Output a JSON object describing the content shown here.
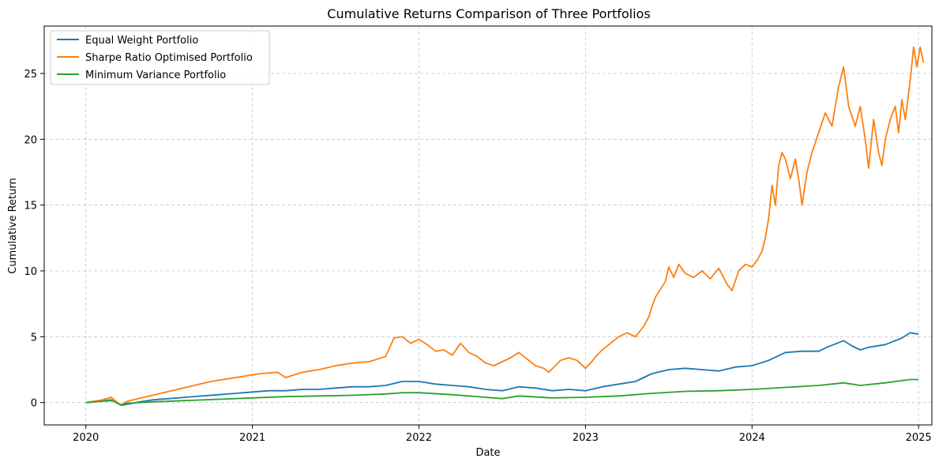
{
  "chart_data": {
    "type": "line",
    "title": "Cumulative Returns Comparison of Three Portfolios",
    "xlabel": "Date",
    "ylabel": "Cumulative Return",
    "x_ticks": [
      "2020",
      "2021",
      "2022",
      "2023",
      "2024",
      "2025"
    ],
    "y_ticks": [
      "0",
      "5",
      "10",
      "15",
      "20",
      "25"
    ],
    "xlim": [
      2019.75,
      2025.08
    ],
    "ylim": [
      -1.7,
      28.6
    ],
    "grid": true,
    "legend_position": "top-left",
    "series": [
      {
        "name": "Equal Weight Portfolio",
        "color": "#1f77b4",
        "points": [
          [
            2020.0,
            0.0
          ],
          [
            2020.08,
            0.1
          ],
          [
            2020.15,
            0.2
          ],
          [
            2020.2,
            -0.1
          ],
          [
            2020.22,
            -0.2
          ],
          [
            2020.3,
            0.0
          ],
          [
            2020.4,
            0.2
          ],
          [
            2020.5,
            0.3
          ],
          [
            2020.6,
            0.4
          ],
          [
            2020.7,
            0.5
          ],
          [
            2020.8,
            0.6
          ],
          [
            2020.9,
            0.7
          ],
          [
            2021.0,
            0.8
          ],
          [
            2021.1,
            0.9
          ],
          [
            2021.2,
            0.9
          ],
          [
            2021.3,
            1.0
          ],
          [
            2021.4,
            1.0
          ],
          [
            2021.5,
            1.1
          ],
          [
            2021.6,
            1.2
          ],
          [
            2021.7,
            1.2
          ],
          [
            2021.8,
            1.3
          ],
          [
            2021.9,
            1.6
          ],
          [
            2022.0,
            1.6
          ],
          [
            2022.1,
            1.4
          ],
          [
            2022.2,
            1.3
          ],
          [
            2022.3,
            1.2
          ],
          [
            2022.4,
            1.0
          ],
          [
            2022.5,
            0.9
          ],
          [
            2022.6,
            1.2
          ],
          [
            2022.7,
            1.1
          ],
          [
            2022.8,
            0.9
          ],
          [
            2022.9,
            1.0
          ],
          [
            2023.0,
            0.9
          ],
          [
            2023.1,
            1.2
          ],
          [
            2023.2,
            1.4
          ],
          [
            2023.3,
            1.6
          ],
          [
            2023.4,
            2.2
          ],
          [
            2023.5,
            2.5
          ],
          [
            2023.6,
            2.6
          ],
          [
            2023.7,
            2.5
          ],
          [
            2023.8,
            2.4
          ],
          [
            2023.9,
            2.7
          ],
          [
            2024.0,
            2.8
          ],
          [
            2024.1,
            3.2
          ],
          [
            2024.2,
            3.8
          ],
          [
            2024.3,
            3.9
          ],
          [
            2024.4,
            3.9
          ],
          [
            2024.45,
            4.2
          ],
          [
            2024.55,
            4.7
          ],
          [
            2024.6,
            4.3
          ],
          [
            2024.65,
            4.0
          ],
          [
            2024.7,
            4.2
          ],
          [
            2024.8,
            4.4
          ],
          [
            2024.9,
            4.9
          ],
          [
            2024.95,
            5.3
          ],
          [
            2025.0,
            5.2
          ]
        ]
      },
      {
        "name": "Sharpe Ratio Optimised Portfolio",
        "color": "#ff7f0e",
        "points": [
          [
            2020.0,
            0.0
          ],
          [
            2020.05,
            0.1
          ],
          [
            2020.1,
            0.2
          ],
          [
            2020.15,
            0.4
          ],
          [
            2020.18,
            0.1
          ],
          [
            2020.21,
            -0.2
          ],
          [
            2020.25,
            0.1
          ],
          [
            2020.35,
            0.4
          ],
          [
            2020.45,
            0.7
          ],
          [
            2020.55,
            1.0
          ],
          [
            2020.65,
            1.3
          ],
          [
            2020.75,
            1.6
          ],
          [
            2020.85,
            1.8
          ],
          [
            2020.95,
            2.0
          ],
          [
            2021.05,
            2.2
          ],
          [
            2021.15,
            2.3
          ],
          [
            2021.2,
            1.9
          ],
          [
            2021.3,
            2.3
          ],
          [
            2021.4,
            2.5
          ],
          [
            2021.5,
            2.8
          ],
          [
            2021.6,
            3.0
          ],
          [
            2021.7,
            3.1
          ],
          [
            2021.75,
            3.3
          ],
          [
            2021.8,
            3.5
          ],
          [
            2021.85,
            4.9
          ],
          [
            2021.9,
            5.0
          ],
          [
            2021.95,
            4.5
          ],
          [
            2022.0,
            4.8
          ],
          [
            2022.05,
            4.4
          ],
          [
            2022.1,
            3.9
          ],
          [
            2022.15,
            4.0
          ],
          [
            2022.2,
            3.6
          ],
          [
            2022.25,
            4.5
          ],
          [
            2022.3,
            3.8
          ],
          [
            2022.35,
            3.5
          ],
          [
            2022.4,
            3.0
          ],
          [
            2022.45,
            2.8
          ],
          [
            2022.5,
            3.1
          ],
          [
            2022.55,
            3.4
          ],
          [
            2022.6,
            3.8
          ],
          [
            2022.65,
            3.3
          ],
          [
            2022.7,
            2.8
          ],
          [
            2022.75,
            2.6
          ],
          [
            2022.78,
            2.3
          ],
          [
            2022.85,
            3.2
          ],
          [
            2022.9,
            3.4
          ],
          [
            2022.95,
            3.2
          ],
          [
            2023.0,
            2.6
          ],
          [
            2023.03,
            3.0
          ],
          [
            2023.07,
            3.6
          ],
          [
            2023.1,
            4.0
          ],
          [
            2023.15,
            4.5
          ],
          [
            2023.2,
            5.0
          ],
          [
            2023.25,
            5.3
          ],
          [
            2023.3,
            5.0
          ],
          [
            2023.35,
            5.8
          ],
          [
            2023.38,
            6.5
          ],
          [
            2023.4,
            7.3
          ],
          [
            2023.42,
            8.0
          ],
          [
            2023.45,
            8.6
          ],
          [
            2023.48,
            9.2
          ],
          [
            2023.5,
            10.3
          ],
          [
            2023.53,
            9.5
          ],
          [
            2023.56,
            10.5
          ],
          [
            2023.6,
            9.8
          ],
          [
            2023.65,
            9.5
          ],
          [
            2023.7,
            10.0
          ],
          [
            2023.75,
            9.4
          ],
          [
            2023.8,
            10.2
          ],
          [
            2023.85,
            9.0
          ],
          [
            2023.88,
            8.5
          ],
          [
            2023.92,
            10.0
          ],
          [
            2023.96,
            10.5
          ],
          [
            2024.0,
            10.3
          ],
          [
            2024.03,
            10.8
          ],
          [
            2024.06,
            11.5
          ],
          [
            2024.08,
            12.5
          ],
          [
            2024.1,
            14.0
          ],
          [
            2024.12,
            16.5
          ],
          [
            2024.14,
            15.0
          ],
          [
            2024.16,
            18.0
          ],
          [
            2024.18,
            19.0
          ],
          [
            2024.2,
            18.5
          ],
          [
            2024.23,
            17.0
          ],
          [
            2024.26,
            18.5
          ],
          [
            2024.28,
            17.0
          ],
          [
            2024.3,
            15.0
          ],
          [
            2024.33,
            17.5
          ],
          [
            2024.36,
            19.0
          ],
          [
            2024.4,
            20.5
          ],
          [
            2024.44,
            22.0
          ],
          [
            2024.48,
            21.0
          ],
          [
            2024.52,
            24.0
          ],
          [
            2024.55,
            25.5
          ],
          [
            2024.58,
            22.5
          ],
          [
            2024.62,
            21.0
          ],
          [
            2024.65,
            22.5
          ],
          [
            2024.68,
            20.0
          ],
          [
            2024.7,
            17.8
          ],
          [
            2024.73,
            21.5
          ],
          [
            2024.76,
            19.0
          ],
          [
            2024.78,
            18.0
          ],
          [
            2024.8,
            20.0
          ],
          [
            2024.83,
            21.5
          ],
          [
            2024.86,
            22.5
          ],
          [
            2024.88,
            20.5
          ],
          [
            2024.9,
            23.0
          ],
          [
            2024.92,
            21.5
          ],
          [
            2024.95,
            24.5
          ],
          [
            2024.97,
            27.0
          ],
          [
            2024.99,
            25.5
          ],
          [
            2025.01,
            27.0
          ],
          [
            2025.03,
            25.8
          ]
        ]
      },
      {
        "name": "Minimum Variance Portfolio",
        "color": "#2ca02c",
        "points": [
          [
            2020.0,
            0.0
          ],
          [
            2020.1,
            0.1
          ],
          [
            2020.16,
            0.15
          ],
          [
            2020.21,
            -0.2
          ],
          [
            2020.25,
            -0.05
          ],
          [
            2020.4,
            0.05
          ],
          [
            2020.6,
            0.15
          ],
          [
            2020.8,
            0.25
          ],
          [
            2021.0,
            0.35
          ],
          [
            2021.2,
            0.45
          ],
          [
            2021.4,
            0.5
          ],
          [
            2021.6,
            0.55
          ],
          [
            2021.8,
            0.65
          ],
          [
            2021.9,
            0.75
          ],
          [
            2022.0,
            0.75
          ],
          [
            2022.2,
            0.6
          ],
          [
            2022.4,
            0.4
          ],
          [
            2022.5,
            0.3
          ],
          [
            2022.6,
            0.5
          ],
          [
            2022.8,
            0.35
          ],
          [
            2023.0,
            0.4
          ],
          [
            2023.2,
            0.5
          ],
          [
            2023.4,
            0.7
          ],
          [
            2023.6,
            0.85
          ],
          [
            2023.8,
            0.9
          ],
          [
            2024.0,
            1.0
          ],
          [
            2024.2,
            1.15
          ],
          [
            2024.4,
            1.3
          ],
          [
            2024.55,
            1.5
          ],
          [
            2024.65,
            1.3
          ],
          [
            2024.8,
            1.5
          ],
          [
            2024.95,
            1.75
          ],
          [
            2025.0,
            1.75
          ]
        ]
      }
    ]
  }
}
